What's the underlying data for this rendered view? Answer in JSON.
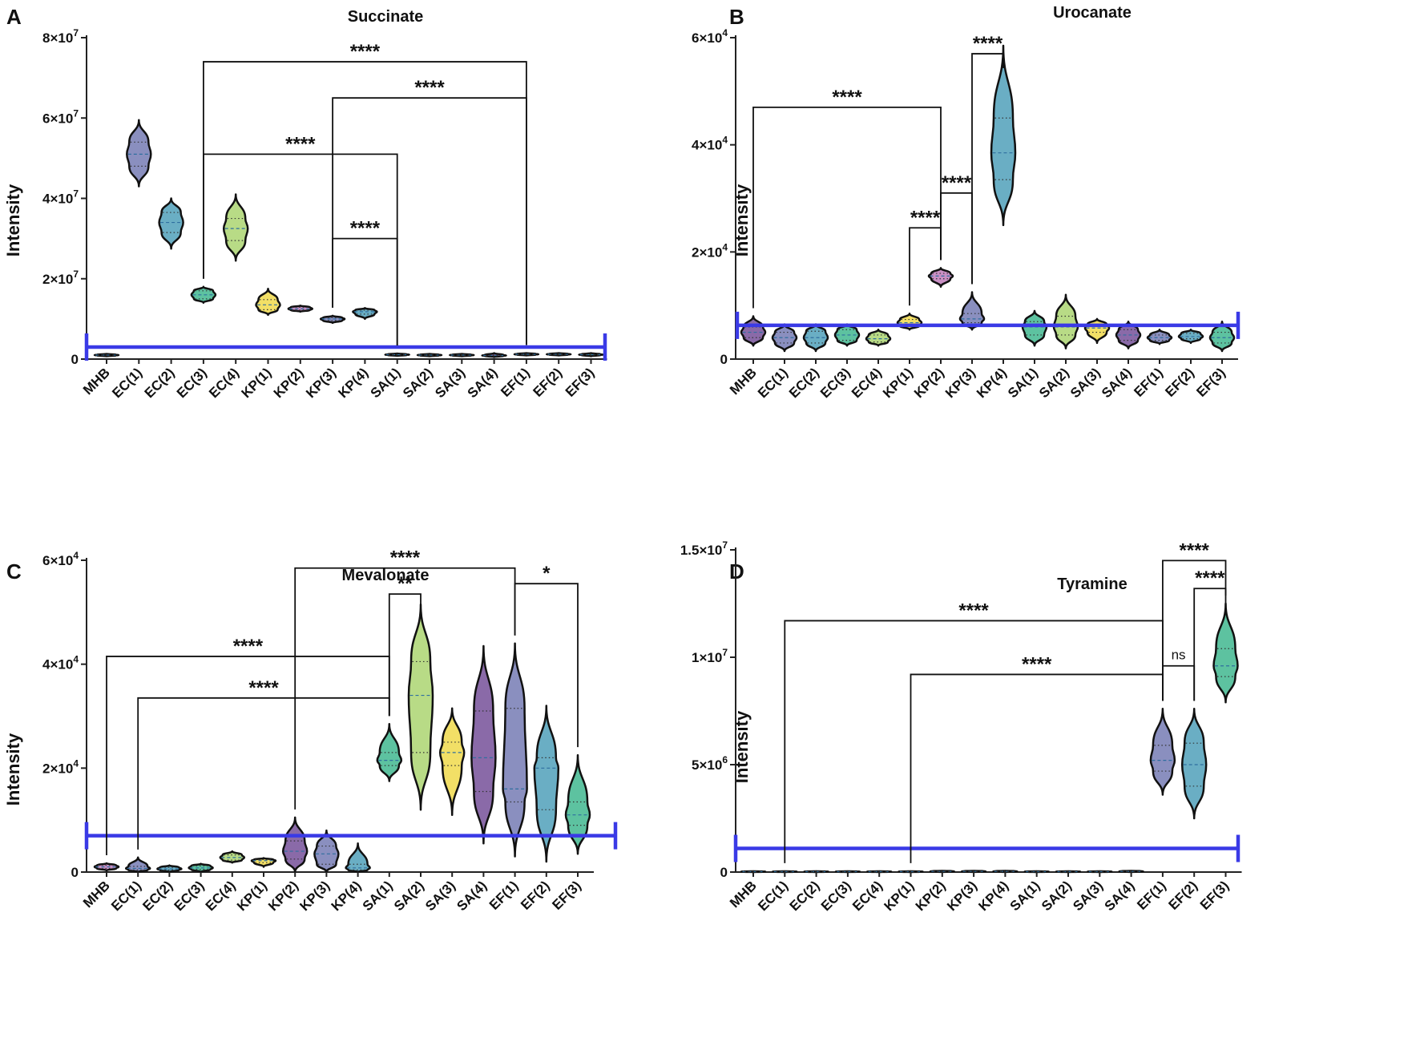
{
  "chart_data": [
    {
      "panel": "A",
      "type": "violin",
      "title": "Succinate",
      "ylabel": "Intensity",
      "ylim": [
        0,
        80000000
      ],
      "yticks": [
        0,
        20000000,
        40000000,
        60000000,
        80000000
      ],
      "ytick_labels": [
        "0",
        "2×10^7",
        "4×10^7",
        "6×10^7",
        "8×10^7"
      ],
      "categories": [
        "MHB",
        "EC(1)",
        "EC(2)",
        "EC(3)",
        "EC(4)",
        "KP(1)",
        "KP(2)",
        "KP(3)",
        "KP(4)",
        "SA(1)",
        "SA(2)",
        "SA(3)",
        "SA(4)",
        "EF(1)",
        "EF(2)",
        "EF(3)"
      ],
      "violins": [
        {
          "median": 1000000,
          "q1": 900000,
          "q3": 1100000,
          "min": 700000,
          "max": 1300000,
          "color": "#c9a0cc"
        },
        {
          "median": 51000000,
          "q1": 48000000,
          "q3": 54000000,
          "min": 43000000,
          "max": 59500000,
          "color": "#8a8fbf"
        },
        {
          "median": 34000000,
          "q1": 31500000,
          "q3": 36500000,
          "min": 27500000,
          "max": 40000000,
          "color": "#6aaec4"
        },
        {
          "median": 16000000,
          "q1": 15000000,
          "q3": 17000000,
          "min": 14000000,
          "max": 18000000,
          "color": "#5dc2a0"
        },
        {
          "median": 32500000,
          "q1": 29500000,
          "q3": 35000000,
          "min": 24500000,
          "max": 41000000,
          "color": "#b8db86"
        },
        {
          "median": 13500000,
          "q1": 12300000,
          "q3": 14800000,
          "min": 11000000,
          "max": 17500000,
          "color": "#f2df66"
        },
        {
          "median": 12500000,
          "q1": 12200000,
          "q3": 12900000,
          "min": 11800000,
          "max": 13300000,
          "color": "#c98fc4"
        },
        {
          "median": 10000000,
          "q1": 9600000,
          "q3": 10300000,
          "min": 9000000,
          "max": 10800000,
          "color": "#8a8fbf"
        },
        {
          "median": 11800000,
          "q1": 11200000,
          "q3": 12200000,
          "min": 10000000,
          "max": 12700000,
          "color": "#6aaec4"
        },
        {
          "median": 1100000,
          "q1": 1000000,
          "q3": 1200000,
          "min": 800000,
          "max": 1400000,
          "color": "#5dc2a0"
        },
        {
          "median": 1000000,
          "q1": 900000,
          "q3": 1100000,
          "min": 700000,
          "max": 1300000,
          "color": "#b8db86"
        },
        {
          "median": 1000000,
          "q1": 900000,
          "q3": 1100000,
          "min": 700000,
          "max": 1300000,
          "color": "#f2df66"
        },
        {
          "median": 900000,
          "q1": 800000,
          "q3": 1000000,
          "min": 500000,
          "max": 1500000,
          "color": "#8a6aa8"
        },
        {
          "median": 1200000,
          "q1": 1100000,
          "q3": 1300000,
          "min": 900000,
          "max": 1500000,
          "color": "#8a8fbf"
        },
        {
          "median": 1200000,
          "q1": 1100000,
          "q3": 1300000,
          "min": 900000,
          "max": 1500000,
          "color": "#6aaec4"
        },
        {
          "median": 1100000,
          "q1": 1000000,
          "q3": 1200000,
          "min": 700000,
          "max": 1500000,
          "color": "#5dc2a0"
        }
      ],
      "reference_line": 3000000,
      "significance": [
        {
          "from": 3,
          "to": 13,
          "label": "****",
          "y": 74000000
        },
        {
          "from": 7,
          "to": 13,
          "label": "****",
          "y": 65000000
        },
        {
          "from": 3,
          "to": 9,
          "label": "****",
          "y": 51000000
        },
        {
          "from": 7,
          "to": 9,
          "label": "****",
          "y": 30000000
        }
      ]
    },
    {
      "panel": "B",
      "type": "violin",
      "title": "Urocanate",
      "ylabel": "Intensity",
      "ylim": [
        0,
        60000
      ],
      "yticks": [
        0,
        20000,
        40000,
        60000
      ],
      "ytick_labels": [
        "0",
        "2×10^4",
        "4×10^4",
        "6×10^4"
      ],
      "categories": [
        "MHB",
        "EC(1)",
        "EC(2)",
        "EC(3)",
        "EC(4)",
        "KP(1)",
        "KP(2)",
        "KP(3)",
        "KP(4)",
        "SA(1)",
        "SA(2)",
        "SA(3)",
        "SA(4)",
        "EF(1)",
        "EF(2)",
        "EF(3)"
      ],
      "violins": [
        {
          "median": 5000,
          "q1": 4000,
          "q3": 6000,
          "min": 2500,
          "max": 8000,
          "color": "#8a6aa8"
        },
        {
          "median": 4000,
          "q1": 3000,
          "q3": 5000,
          "min": 1500,
          "max": 6500,
          "color": "#8a8fbf"
        },
        {
          "median": 4000,
          "q1": 3000,
          "q3": 5200,
          "min": 1500,
          "max": 6500,
          "color": "#6aaec4"
        },
        {
          "median": 4500,
          "q1": 3500,
          "q3": 5500,
          "min": 2500,
          "max": 6500,
          "color": "#5dc2a0"
        },
        {
          "median": 3800,
          "q1": 3200,
          "q3": 4500,
          "min": 2500,
          "max": 5500,
          "color": "#b8db86"
        },
        {
          "median": 6800,
          "q1": 6200,
          "q3": 7400,
          "min": 5500,
          "max": 8500,
          "color": "#f2df66"
        },
        {
          "median": 15500,
          "q1": 15000,
          "q3": 16000,
          "min": 13500,
          "max": 17000,
          "color": "#c98fc4"
        },
        {
          "median": 7500,
          "q1": 6800,
          "q3": 8500,
          "min": 5500,
          "max": 12500,
          "color": "#8a8fbf"
        },
        {
          "median": 38500,
          "q1": 33500,
          "q3": 45000,
          "min": 25000,
          "max": 58500,
          "color": "#6aaec4"
        },
        {
          "median": 6000,
          "q1": 4500,
          "q3": 7000,
          "min": 2500,
          "max": 9000,
          "color": "#5dc2a0"
        },
        {
          "median": 6000,
          "q1": 4500,
          "q3": 8000,
          "min": 2000,
          "max": 12000,
          "color": "#b8db86"
        },
        {
          "median": 5800,
          "q1": 5000,
          "q3": 6500,
          "min": 3000,
          "max": 7500,
          "color": "#f2df66"
        },
        {
          "median": 4500,
          "q1": 3500,
          "q3": 5500,
          "min": 2000,
          "max": 7000,
          "color": "#8a6aa8"
        },
        {
          "median": 4000,
          "q1": 3500,
          "q3": 4500,
          "min": 2800,
          "max": 5500,
          "color": "#8a8fbf"
        },
        {
          "median": 4200,
          "q1": 3800,
          "q3": 4800,
          "min": 3000,
          "max": 5500,
          "color": "#6aaec4"
        },
        {
          "median": 4000,
          "q1": 3000,
          "q3": 5000,
          "min": 1500,
          "max": 7000,
          "color": "#5dc2a0"
        }
      ],
      "reference_line": 6300,
      "significance": [
        {
          "from": 0,
          "to": 6,
          "label": "****",
          "y": 47000
        },
        {
          "from": 7,
          "to": 8,
          "label": "****",
          "y": 57000
        },
        {
          "from": 6,
          "to": 7,
          "label": "****",
          "y": 31000
        },
        {
          "from": 5,
          "to": 6,
          "label": "****",
          "y": 24500
        }
      ]
    },
    {
      "panel": "C",
      "type": "violin",
      "title": "Mevalonate",
      "ylabel": "Intensity",
      "ylim": [
        0,
        60000
      ],
      "yticks": [
        0,
        20000,
        40000,
        60000
      ],
      "ytick_labels": [
        "0",
        "2×10^4",
        "4×10^4",
        "6×10^4"
      ],
      "categories": [
        "MHB",
        "EC(1)",
        "EC(2)",
        "EC(3)",
        "EC(4)",
        "KP(1)",
        "KP(2)",
        "KP(3)",
        "KP(4)",
        "SA(1)",
        "SA(2)",
        "SA(3)",
        "SA(4)",
        "EF(1)",
        "EF(2)",
        "EF(3)"
      ],
      "violins": [
        {
          "median": 1000,
          "q1": 700,
          "q3": 1300,
          "min": 300,
          "max": 1700,
          "color": "#c98fc4"
        },
        {
          "median": 700,
          "q1": 400,
          "q3": 1100,
          "min": 0,
          "max": 2800,
          "color": "#8a8fbf"
        },
        {
          "median": 600,
          "q1": 400,
          "q3": 900,
          "min": 0,
          "max": 1300,
          "color": "#6aaec4"
        },
        {
          "median": 800,
          "q1": 500,
          "q3": 1200,
          "min": 0,
          "max": 1600,
          "color": "#5dc2a0"
        },
        {
          "median": 2800,
          "q1": 2300,
          "q3": 3300,
          "min": 1800,
          "max": 4000,
          "color": "#b8db86"
        },
        {
          "median": 2200,
          "q1": 1800,
          "q3": 2400,
          "min": 1000,
          "max": 2700,
          "color": "#f2df66"
        },
        {
          "median": 4000,
          "q1": 2500,
          "q3": 6000,
          "min": 0,
          "max": 10500,
          "color": "#8a6aa8"
        },
        {
          "median": 3500,
          "q1": 1500,
          "q3": 5000,
          "min": 0,
          "max": 8000,
          "color": "#8a8fbf"
        },
        {
          "median": 800,
          "q1": 400,
          "q3": 1500,
          "min": 0,
          "max": 5500,
          "color": "#6aaec4"
        },
        {
          "median": 21500,
          "q1": 20500,
          "q3": 23000,
          "min": 17500,
          "max": 28500,
          "color": "#5dc2a0"
        },
        {
          "median": 34000,
          "q1": 23000,
          "q3": 40500,
          "min": 12000,
          "max": 51500,
          "color": "#b8db86"
        },
        {
          "median": 23000,
          "q1": 20500,
          "q3": 25000,
          "min": 11000,
          "max": 31500,
          "color": "#f2df66"
        },
        {
          "median": 22000,
          "q1": 15500,
          "q3": 31000,
          "min": 5500,
          "max": 43500,
          "color": "#8a6aa8"
        },
        {
          "median": 16000,
          "q1": 13500,
          "q3": 31500,
          "min": 3000,
          "max": 44000,
          "color": "#8a8fbf"
        },
        {
          "median": 20000,
          "q1": 12000,
          "q3": 22000,
          "min": 2000,
          "max": 32000,
          "color": "#6aaec4"
        },
        {
          "median": 11000,
          "q1": 9000,
          "q3": 13500,
          "min": 3500,
          "max": 22500,
          "color": "#5dc2a0"
        }
      ],
      "reference_line": 7000,
      "significance": [
        {
          "from": 6,
          "to": 13,
          "label": "****",
          "y": 58500
        },
        {
          "from": 9,
          "to": 10,
          "label": "**",
          "y": 53500
        },
        {
          "from": 13,
          "to": 15,
          "label": "*",
          "y": 55500
        },
        {
          "from": 0,
          "to": 9,
          "label": "****",
          "y": 41500
        },
        {
          "from": 1,
          "to": 9,
          "label": "****",
          "y": 33500
        }
      ]
    },
    {
      "panel": "D",
      "type": "violin",
      "title": "Tyramine",
      "ylabel": "Intensity",
      "ylim": [
        0,
        15000000
      ],
      "yticks": [
        0,
        5000000,
        10000000,
        15000000
      ],
      "ytick_labels": [
        "0",
        "5×10^6",
        "1×10^7",
        "1.5×10^7"
      ],
      "categories": [
        "MHB",
        "EC(1)",
        "EC(2)",
        "EC(3)",
        "EC(4)",
        "KP(1)",
        "KP(2)",
        "KP(3)",
        "KP(4)",
        "SA(1)",
        "SA(2)",
        "SA(3)",
        "SA(4)",
        "EF(1)",
        "EF(2)",
        "EF(3)"
      ],
      "violins": [
        {
          "median": 20000,
          "q1": 10000,
          "q3": 30000,
          "min": 0,
          "max": 40000,
          "color": "#8a8fbf"
        },
        {
          "median": 20000,
          "q1": 10000,
          "q3": 30000,
          "min": 0,
          "max": 40000,
          "color": "#8a8fbf"
        },
        {
          "median": 20000,
          "q1": 10000,
          "q3": 30000,
          "min": 0,
          "max": 40000,
          "color": "#6aaec4"
        },
        {
          "median": 20000,
          "q1": 10000,
          "q3": 30000,
          "min": 0,
          "max": 40000,
          "color": "#5dc2a0"
        },
        {
          "median": 20000,
          "q1": 10000,
          "q3": 30000,
          "min": 0,
          "max": 40000,
          "color": "#b8db86"
        },
        {
          "median": 20000,
          "q1": 10000,
          "q3": 30000,
          "min": 0,
          "max": 40000,
          "color": "#f2df66"
        },
        {
          "median": 30000,
          "q1": 15000,
          "q3": 45000,
          "min": 0,
          "max": 60000,
          "color": "#8a6aa8"
        },
        {
          "median": 30000,
          "q1": 15000,
          "q3": 45000,
          "min": 0,
          "max": 60000,
          "color": "#8a8fbf"
        },
        {
          "median": 30000,
          "q1": 15000,
          "q3": 45000,
          "min": 0,
          "max": 60000,
          "color": "#6aaec4"
        },
        {
          "median": 20000,
          "q1": 10000,
          "q3": 30000,
          "min": 0,
          "max": 40000,
          "color": "#5dc2a0"
        },
        {
          "median": 20000,
          "q1": 10000,
          "q3": 30000,
          "min": 0,
          "max": 40000,
          "color": "#b8db86"
        },
        {
          "median": 20000,
          "q1": 10000,
          "q3": 30000,
          "min": 0,
          "max": 40000,
          "color": "#f2df66"
        },
        {
          "median": 30000,
          "q1": 15000,
          "q3": 45000,
          "min": 0,
          "max": 60000,
          "color": "#8a6aa8"
        },
        {
          "median": 5200000,
          "q1": 4700000,
          "q3": 5900000,
          "min": 3600000,
          "max": 7600000,
          "color": "#8a8fbf"
        },
        {
          "median": 5000000,
          "q1": 4000000,
          "q3": 6000000,
          "min": 2500000,
          "max": 7600000,
          "color": "#6aaec4"
        },
        {
          "median": 9600000,
          "q1": 9100000,
          "q3": 10400000,
          "min": 7900000,
          "max": 12500000,
          "color": "#5dc2a0"
        }
      ],
      "reference_line": 1100000,
      "significance": [
        {
          "from": 13,
          "to": 15,
          "label": "****",
          "y": 14500000
        },
        {
          "from": 14,
          "to": 15,
          "label": "****",
          "y": 13200000
        },
        {
          "from": 1,
          "to": 13,
          "label": "****",
          "y": 11700000
        },
        {
          "from": 13,
          "to": 14,
          "label": "ns",
          "y": 9600000
        },
        {
          "from": 5,
          "to": 13,
          "label": "****",
          "y": 9200000
        }
      ]
    }
  ]
}
